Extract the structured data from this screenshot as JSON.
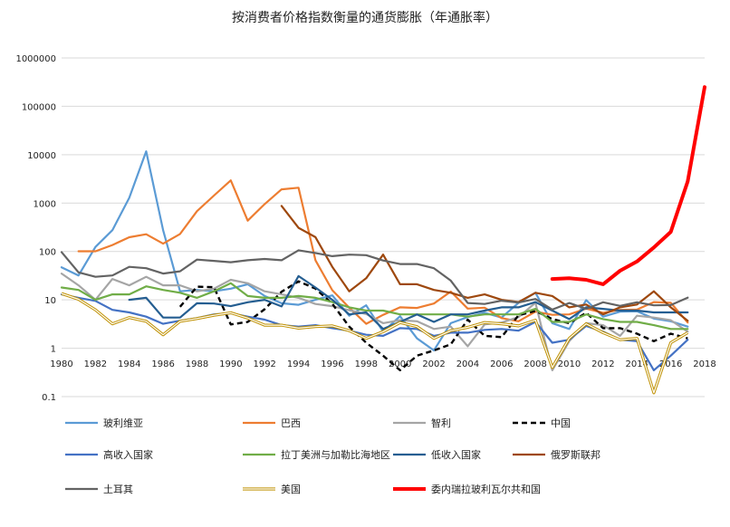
{
  "chart_data": {
    "type": "line",
    "title": "按消费者价格指数衡量的通货膨胀（年通胀率）",
    "xlabel": "",
    "ylabel": "",
    "y_scale": "log",
    "ylim": [
      0.1,
      1000000
    ],
    "xlim": [
      1980,
      2018
    ],
    "x_ticks": [
      "1980",
      "1982",
      "1984",
      "1986",
      "1988",
      "1990",
      "1992",
      "1994",
      "1996",
      "1998",
      "2000",
      "2002",
      "2004",
      "2006",
      "2008",
      "2010",
      "2012",
      "2014",
      "2016",
      "2018"
    ],
    "y_ticks": [
      "0.1",
      "1",
      "10",
      "100",
      "1000",
      "10000",
      "100000",
      "1000000"
    ],
    "grid": "horizontal",
    "legend_position": "bottom",
    "series": [
      {
        "name": "玻利维亚",
        "color": "#5B9BD5",
        "dash": "solid",
        "width": 2.2,
        "x": [
          1980,
          1981,
          1982,
          1983,
          1984,
          1985,
          1986,
          1987,
          1988,
          1989,
          1990,
          1991,
          1992,
          1993,
          1994,
          1995,
          1996,
          1997,
          1998,
          1999,
          2000,
          2001,
          2002,
          2003,
          2004,
          2005,
          2006,
          2007,
          2008,
          2009,
          2010,
          2011,
          2012,
          2013,
          2014,
          2015,
          2016,
          2017
        ],
        "values": [
          47,
          32,
          124,
          276,
          1281,
          11750,
          276,
          15,
          16,
          15,
          17,
          21,
          12,
          8.5,
          7.9,
          10,
          12.4,
          4.7,
          7.7,
          2.2,
          4.6,
          1.6,
          0.9,
          3.3,
          4.4,
          5.4,
          4.3,
          8.7,
          14,
          3.3,
          2.5,
          9.9,
          4.5,
          5.7,
          5.8,
          4.1,
          3.6,
          2.8
        ]
      },
      {
        "name": "巴西",
        "color": "#ED7D31",
        "dash": "solid",
        "width": 2.2,
        "x": [
          1981,
          1982,
          1983,
          1984,
          1985,
          1986,
          1987,
          1988,
          1989,
          1990,
          1991,
          1992,
          1993,
          1994,
          1995,
          1996,
          1997,
          1998,
          1999,
          2000,
          2001,
          2002,
          2003,
          2004,
          2005,
          2006,
          2007,
          2008,
          2009,
          2010,
          2011,
          2012,
          2013,
          2014,
          2015,
          2016,
          2017
        ],
        "values": [
          101,
          101,
          136,
          197,
          227,
          145,
          230,
          682,
          1431,
          2948,
          433,
          952,
          1928,
          2076,
          66,
          15.8,
          6.9,
          3.2,
          4.9,
          7.0,
          6.8,
          8.4,
          14.8,
          6.6,
          6.9,
          4.2,
          3.6,
          5.7,
          4.9,
          5.0,
          6.6,
          5.4,
          6.2,
          6.3,
          9.0,
          8.7,
          3.4
        ]
      },
      {
        "name": "智利",
        "color": "#A5A5A5",
        "dash": "solid",
        "width": 2.2,
        "x": [
          1980,
          1981,
          1982,
          1983,
          1984,
          1985,
          1986,
          1987,
          1988,
          1989,
          1990,
          1991,
          1992,
          1993,
          1994,
          1995,
          1996,
          1997,
          1998,
          1999,
          2000,
          2001,
          2002,
          2003,
          2004,
          2005,
          2006,
          2007,
          2008,
          2009,
          2010,
          2011,
          2012,
          2013,
          2014,
          2015,
          2016,
          2017
        ],
        "values": [
          35,
          20,
          10,
          27,
          20,
          30,
          20,
          20,
          15,
          17,
          26,
          22,
          15,
          13,
          11,
          8.2,
          7.4,
          6.1,
          5.1,
          3.3,
          3.8,
          3.6,
          2.5,
          2.8,
          1.1,
          3.1,
          3.4,
          4.4,
          8.7,
          0.35,
          1.4,
          3.3,
          3.0,
          1.8,
          4.7,
          4.3,
          3.8,
          2.2
        ]
      },
      {
        "name": "中国",
        "color": "#000000",
        "dash": "dashed",
        "width": 2.4,
        "x": [
          1987,
          1988,
          1989,
          1990,
          1991,
          1992,
          1993,
          1994,
          1995,
          1996,
          1997,
          1998,
          1999,
          2000,
          2001,
          2002,
          2003,
          2004,
          2005,
          2006,
          2007,
          2008,
          2009,
          2010,
          2011,
          2012,
          2013,
          2014,
          2015,
          2016,
          2017
        ],
        "values": [
          7.2,
          18.7,
          18.3,
          3.1,
          3.5,
          6.4,
          14.7,
          24.1,
          17.1,
          8.3,
          2.8,
          1.3,
          0.7,
          0.35,
          0.7,
          0.9,
          1.2,
          3.9,
          1.8,
          1.7,
          4.8,
          5.9,
          4.0,
          3.3,
          5.4,
          2.6,
          2.6,
          2.0,
          1.4,
          2.0,
          1.6
        ]
      },
      {
        "name": "高收入国家",
        "color": "#4472C4",
        "dash": "solid",
        "width": 2.2,
        "x": [
          1980,
          1981,
          1982,
          1983,
          1984,
          1985,
          1986,
          1987,
          1988,
          1989,
          1990,
          1991,
          1992,
          1993,
          1994,
          1995,
          1996,
          1997,
          1998,
          1999,
          2000,
          2001,
          2002,
          2003,
          2004,
          2005,
          2006,
          2007,
          2008,
          2009,
          2010,
          2011,
          2012,
          2013,
          2014,
          2015,
          2016,
          2017
        ],
        "values": [
          13,
          11,
          9.5,
          6.2,
          5.5,
          4.5,
          3.2,
          3.7,
          4.2,
          5.0,
          5.3,
          4.5,
          3.9,
          3.0,
          2.8,
          3.0,
          2.6,
          2.3,
          1.9,
          1.8,
          2.6,
          2.5,
          1.8,
          2.1,
          2.1,
          2.4,
          2.5,
          2.3,
          3.5,
          1.3,
          1.5,
          2.9,
          2.2,
          1.5,
          1.4,
          0.35,
          0.7,
          1.5
        ]
      },
      {
        "name": "拉丁美洲与加勒比海地区",
        "color": "#70AD47",
        "dash": "solid",
        "width": 2.2,
        "x": [
          1980,
          1981,
          1982,
          1983,
          1984,
          1985,
          1986,
          1987,
          1988,
          1989,
          1990,
          1991,
          1992,
          1993,
          1994,
          1995,
          1996,
          1997,
          1998,
          1999,
          2000,
          2001,
          2002,
          2003,
          2004,
          2005,
          2006,
          2007,
          2008,
          2009,
          2010,
          2011,
          2012,
          2013,
          2014,
          2015,
          2016,
          2017
        ],
        "values": [
          18,
          16,
          10,
          13,
          13,
          19,
          16,
          14,
          11,
          15,
          22,
          12,
          11,
          11,
          12,
          11,
          9,
          7,
          6,
          6,
          5,
          5,
          5,
          5,
          4.5,
          5,
          5,
          5,
          6.5,
          3.5,
          3.5,
          5,
          4,
          3.5,
          3.5,
          3,
          2.5,
          2.5
        ]
      },
      {
        "name": "低收入国家",
        "color": "#255E91",
        "dash": "solid",
        "width": 2.2,
        "x": [
          1984,
          1985,
          1986,
          1987,
          1988,
          1989,
          1990,
          1991,
          1992,
          1993,
          1994,
          1995,
          1996,
          1997,
          1998,
          1999,
          2000,
          2001,
          2002,
          2003,
          2004,
          2005,
          2006,
          2007,
          2008,
          2009,
          2010,
          2011,
          2012,
          2013,
          2014,
          2015,
          2016,
          2017
        ],
        "values": [
          10,
          11,
          4.3,
          4.3,
          8.5,
          8.4,
          7.4,
          8.9,
          10,
          7.3,
          31,
          18,
          10,
          5,
          5.5,
          2.5,
          3.5,
          5,
          3.5,
          5,
          5,
          6,
          7,
          7,
          9,
          6,
          4,
          7,
          6.5,
          6,
          6,
          5.5,
          5.5,
          5.5
        ]
      },
      {
        "name": "俄罗斯联邦",
        "color": "#9E480E",
        "dash": "solid",
        "width": 2.2,
        "x": [
          1993,
          1994,
          1995,
          1996,
          1997,
          1998,
          1999,
          2000,
          2001,
          2002,
          2003,
          2004,
          2005,
          2006,
          2007,
          2008,
          2009,
          2010,
          2011,
          2012,
          2013,
          2014,
          2015,
          2016,
          2017
        ],
        "values": [
          875,
          308,
          198,
          48,
          15,
          28,
          86,
          21,
          21,
          16,
          14,
          11,
          13,
          10,
          9,
          14,
          12,
          7,
          8,
          5,
          7,
          8,
          15,
          7,
          3.7
        ]
      },
      {
        "name": "土耳其",
        "color": "#636363",
        "dash": "solid",
        "width": 2.2,
        "x": [
          1980,
          1981,
          1982,
          1983,
          1984,
          1985,
          1986,
          1987,
          1988,
          1989,
          1990,
          1991,
          1992,
          1993,
          1994,
          1995,
          1996,
          1997,
          1998,
          1999,
          2000,
          2001,
          2002,
          2003,
          2004,
          2005,
          2006,
          2007,
          2008,
          2009,
          2010,
          2011,
          2012,
          2013,
          2014,
          2015,
          2016,
          2017
        ],
        "values": [
          97,
          37,
          30,
          32,
          48,
          45,
          35,
          39,
          68,
          64,
          60,
          66,
          70,
          66,
          106,
          93,
          80,
          86,
          84,
          65,
          55,
          55,
          45,
          25,
          8.6,
          8.2,
          9.6,
          8.8,
          10.4,
          6.3,
          8.6,
          6.5,
          8.9,
          7.5,
          8.9,
          7.7,
          7.8,
          11.1
        ]
      },
      {
        "name": "美国",
        "color": "#BF9000",
        "dash": "double",
        "width": 2.4,
        "x": [
          1980,
          1981,
          1982,
          1983,
          1984,
          1985,
          1986,
          1987,
          1988,
          1989,
          1990,
          1991,
          1992,
          1993,
          1994,
          1995,
          1996,
          1997,
          1998,
          1999,
          2000,
          2001,
          2002,
          2003,
          2004,
          2005,
          2006,
          2007,
          2008,
          2009,
          2010,
          2011,
          2012,
          2013,
          2014,
          2015,
          2016,
          2017
        ],
        "values": [
          13.5,
          10.3,
          6.2,
          3.2,
          4.3,
          3.6,
          1.9,
          3.6,
          4.1,
          4.8,
          5.4,
          4.2,
          3.0,
          3.0,
          2.6,
          2.8,
          2.9,
          2.3,
          1.6,
          2.2,
          3.4,
          2.8,
          1.6,
          2.3,
          2.7,
          3.4,
          3.2,
          2.9,
          3.8,
          0.4,
          1.6,
          3.2,
          2.1,
          1.5,
          1.6,
          0.12,
          1.3,
          2.1
        ]
      },
      {
        "name": "委内瑞拉玻利瓦尔共和国",
        "color": "#FF0000",
        "dash": "solid",
        "width": 4.0,
        "x": [
          2009,
          2010,
          2011,
          2012,
          2013,
          2014,
          2015,
          2016,
          2017,
          2018
        ],
        "values": [
          27,
          28,
          26,
          21,
          40,
          62,
          121,
          254,
          2800,
          250000
        ]
      }
    ]
  }
}
